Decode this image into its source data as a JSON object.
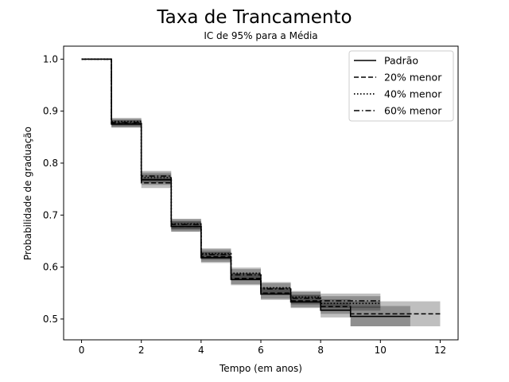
{
  "chart_data": {
    "type": "line",
    "step": "post",
    "title": "Taxa de Trancamento",
    "subtitle": "IC de 95% para a Média",
    "xlabel": "Tempo (em anos)",
    "ylabel": "Probabilidade de graduação",
    "xlim": [
      -0.6,
      12.6
    ],
    "ylim": [
      0.46,
      1.025
    ],
    "xticks": [
      0,
      2,
      4,
      6,
      8,
      10,
      12
    ],
    "yticks": [
      0.5,
      0.6,
      0.7,
      0.8,
      0.9,
      1.0
    ],
    "xtick_labels": [
      "0",
      "2",
      "4",
      "6",
      "8",
      "10",
      "12"
    ],
    "ytick_labels": [
      "0.5",
      "0.6",
      "0.7",
      "0.8",
      "0.9",
      "1.0"
    ],
    "legend_position": "top-right",
    "series": [
      {
        "name": "Padrão",
        "style": "solid",
        "x": [
          0,
          1,
          2,
          3,
          4,
          5,
          6,
          7,
          8,
          9,
          10,
          11
        ],
        "y": [
          1.0,
          0.875,
          0.768,
          0.678,
          0.618,
          0.576,
          0.548,
          0.533,
          0.517,
          0.505,
          0.505,
          0.505
        ],
        "ci_low": [
          1.0,
          0.868,
          0.758,
          0.668,
          0.608,
          0.565,
          0.537,
          0.521,
          0.503,
          0.486,
          0.486,
          0.486
        ],
        "ci_high": [
          1.0,
          0.882,
          0.778,
          0.688,
          0.628,
          0.588,
          0.56,
          0.546,
          0.532,
          0.525,
          0.525,
          0.525
        ]
      },
      {
        "name": "20% menor",
        "style": "dashed",
        "x": [
          0,
          1,
          2,
          3,
          4,
          5,
          6,
          7,
          8,
          9,
          10,
          11,
          12
        ],
        "y": [
          1.0,
          0.876,
          0.762,
          0.678,
          0.62,
          0.578,
          0.55,
          0.535,
          0.524,
          0.51,
          0.51,
          0.51,
          0.51
        ],
        "ci_low": [
          1.0,
          0.869,
          0.752,
          0.668,
          0.61,
          0.567,
          0.539,
          0.523,
          0.51,
          0.486,
          0.486,
          0.486,
          0.486
        ],
        "ci_high": [
          1.0,
          0.883,
          0.772,
          0.688,
          0.63,
          0.589,
          0.561,
          0.547,
          0.538,
          0.534,
          0.534,
          0.534,
          0.534
        ]
      },
      {
        "name": "40% menor",
        "style": "dotted",
        "x": [
          0,
          1,
          2,
          3,
          4,
          5,
          6,
          7,
          8,
          9,
          10
        ],
        "y": [
          1.0,
          0.88,
          0.772,
          0.683,
          0.626,
          0.588,
          0.56,
          0.542,
          0.53,
          0.53,
          0.53
        ],
        "ci_low": [
          1.0,
          0.873,
          0.762,
          0.673,
          0.616,
          0.577,
          0.549,
          0.53,
          0.516,
          0.516,
          0.516
        ],
        "ci_high": [
          1.0,
          0.887,
          0.782,
          0.693,
          0.636,
          0.599,
          0.571,
          0.554,
          0.544,
          0.544,
          0.544
        ]
      },
      {
        "name": "60% menor",
        "style": "dashdot",
        "x": [
          0,
          1,
          2,
          3,
          4,
          5,
          6,
          7,
          8,
          9,
          10
        ],
        "y": [
          1.0,
          0.878,
          0.775,
          0.682,
          0.624,
          0.585,
          0.558,
          0.54,
          0.535,
          0.535,
          0.535
        ],
        "ci_low": [
          1.0,
          0.871,
          0.765,
          0.672,
          0.614,
          0.574,
          0.547,
          0.528,
          0.521,
          0.521,
          0.521
        ],
        "ci_high": [
          1.0,
          0.885,
          0.785,
          0.692,
          0.634,
          0.596,
          0.569,
          0.552,
          0.549,
          0.549,
          0.549
        ]
      }
    ]
  }
}
